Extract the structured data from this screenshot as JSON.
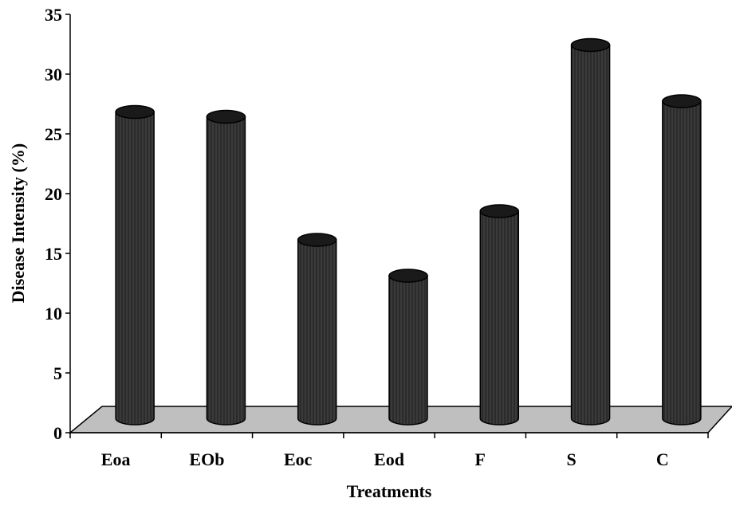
{
  "chart_data": {
    "type": "bar",
    "style": "3d-cylinder",
    "categories": [
      "Eoa",
      "EOb",
      "Eoc",
      "Eod",
      "F",
      "S",
      "C"
    ],
    "values": [
      26.7,
      26.3,
      16.0,
      13.0,
      18.4,
      32.3,
      27.6
    ],
    "xlabel": "Treatments",
    "ylabel": "Disease Intensity (%)",
    "ylim": [
      0,
      35
    ],
    "yticks": [
      "0",
      "5",
      "10",
      "15",
      "20",
      "25",
      "30",
      "35"
    ],
    "grid": false,
    "legend": "none",
    "colors": {
      "bar": "#3a3a3a",
      "bar_top": "#1a1a1a",
      "floor": "#bfbfbf"
    }
  }
}
